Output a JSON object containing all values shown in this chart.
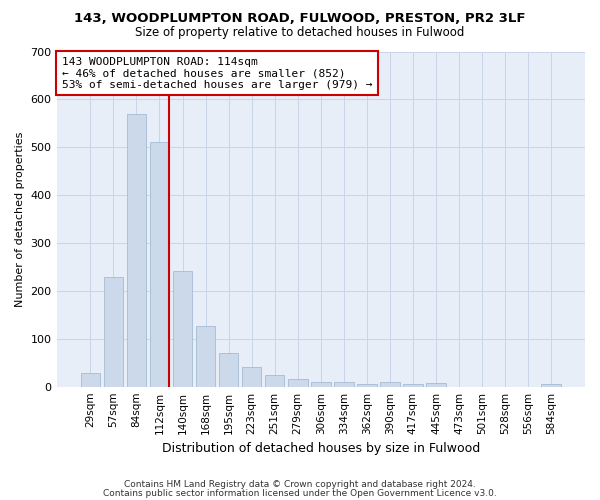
{
  "title1": "143, WOODPLUMPTON ROAD, FULWOOD, PRESTON, PR2 3LF",
  "title2": "Size of property relative to detached houses in Fulwood",
  "xlabel": "Distribution of detached houses by size in Fulwood",
  "ylabel": "Number of detached properties",
  "categories": [
    "29sqm",
    "57sqm",
    "84sqm",
    "112sqm",
    "140sqm",
    "168sqm",
    "195sqm",
    "223sqm",
    "251sqm",
    "279sqm",
    "306sqm",
    "334sqm",
    "362sqm",
    "390sqm",
    "417sqm",
    "445sqm",
    "473sqm",
    "501sqm",
    "528sqm",
    "556sqm",
    "584sqm"
  ],
  "values": [
    28,
    230,
    570,
    510,
    242,
    127,
    70,
    42,
    25,
    15,
    10,
    10,
    5,
    10,
    5,
    7,
    0,
    0,
    0,
    0,
    5
  ],
  "bar_color": "#ccd9ea",
  "bar_edge_color": "#9ab5d0",
  "grid_color": "#c8d4e8",
  "property_line_color": "#cc0000",
  "annotation_text": "143 WOODPLUMPTON ROAD: 114sqm\n← 46% of detached houses are smaller (852)\n53% of semi-detached houses are larger (979) →",
  "annotation_box_color": "#ffffff",
  "annotation_box_edge": "#cc0000",
  "footer1": "Contains HM Land Registry data © Crown copyright and database right 2024.",
  "footer2": "Contains public sector information licensed under the Open Government Licence v3.0.",
  "ylim": [
    0,
    700
  ],
  "yticks": [
    0,
    100,
    200,
    300,
    400,
    500,
    600,
    700
  ],
  "bg_color": "#ffffff",
  "plot_bg_color": "#e8eef8"
}
